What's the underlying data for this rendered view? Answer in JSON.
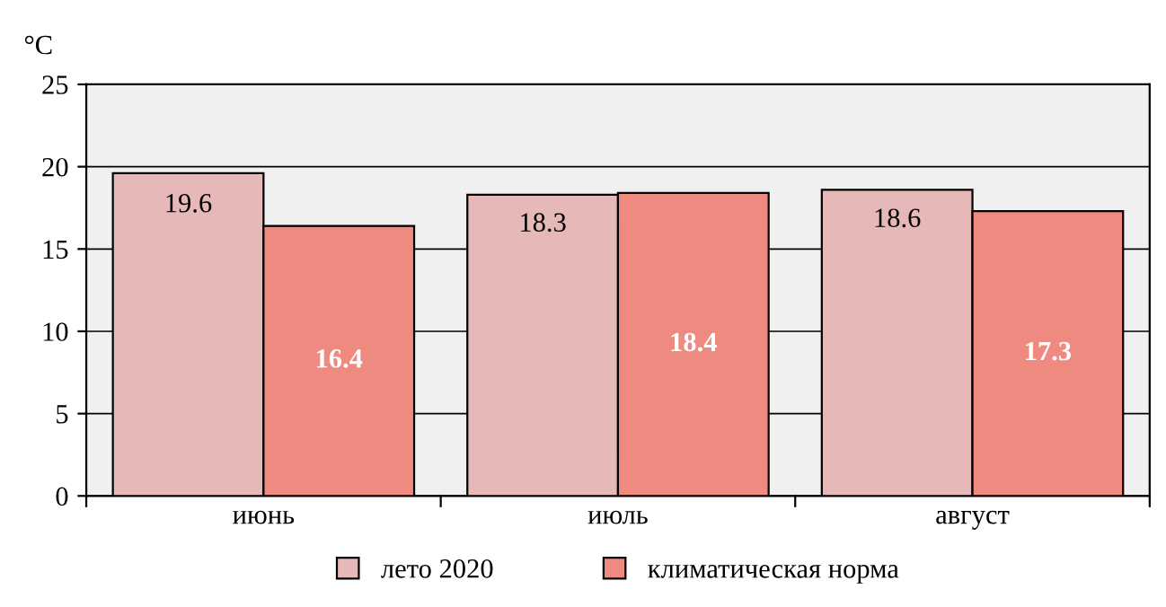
{
  "chart_data": {
    "type": "bar",
    "ylabel": "°C",
    "categories": [
      "июнь",
      "июль",
      "август"
    ],
    "series": [
      {
        "name": "лето 2020",
        "color": "#e6b9b8",
        "values": [
          19.6,
          18.3,
          18.6
        ]
      },
      {
        "name": "климатическая норма",
        "color": "#ee8a80",
        "values": [
          16.4,
          18.4,
          17.3
        ]
      }
    ],
    "ylim": [
      0,
      25
    ],
    "yticks": [
      0,
      5,
      10,
      15,
      20,
      25
    ],
    "grid": "y",
    "legend": "bottom",
    "data_labels": true
  }
}
